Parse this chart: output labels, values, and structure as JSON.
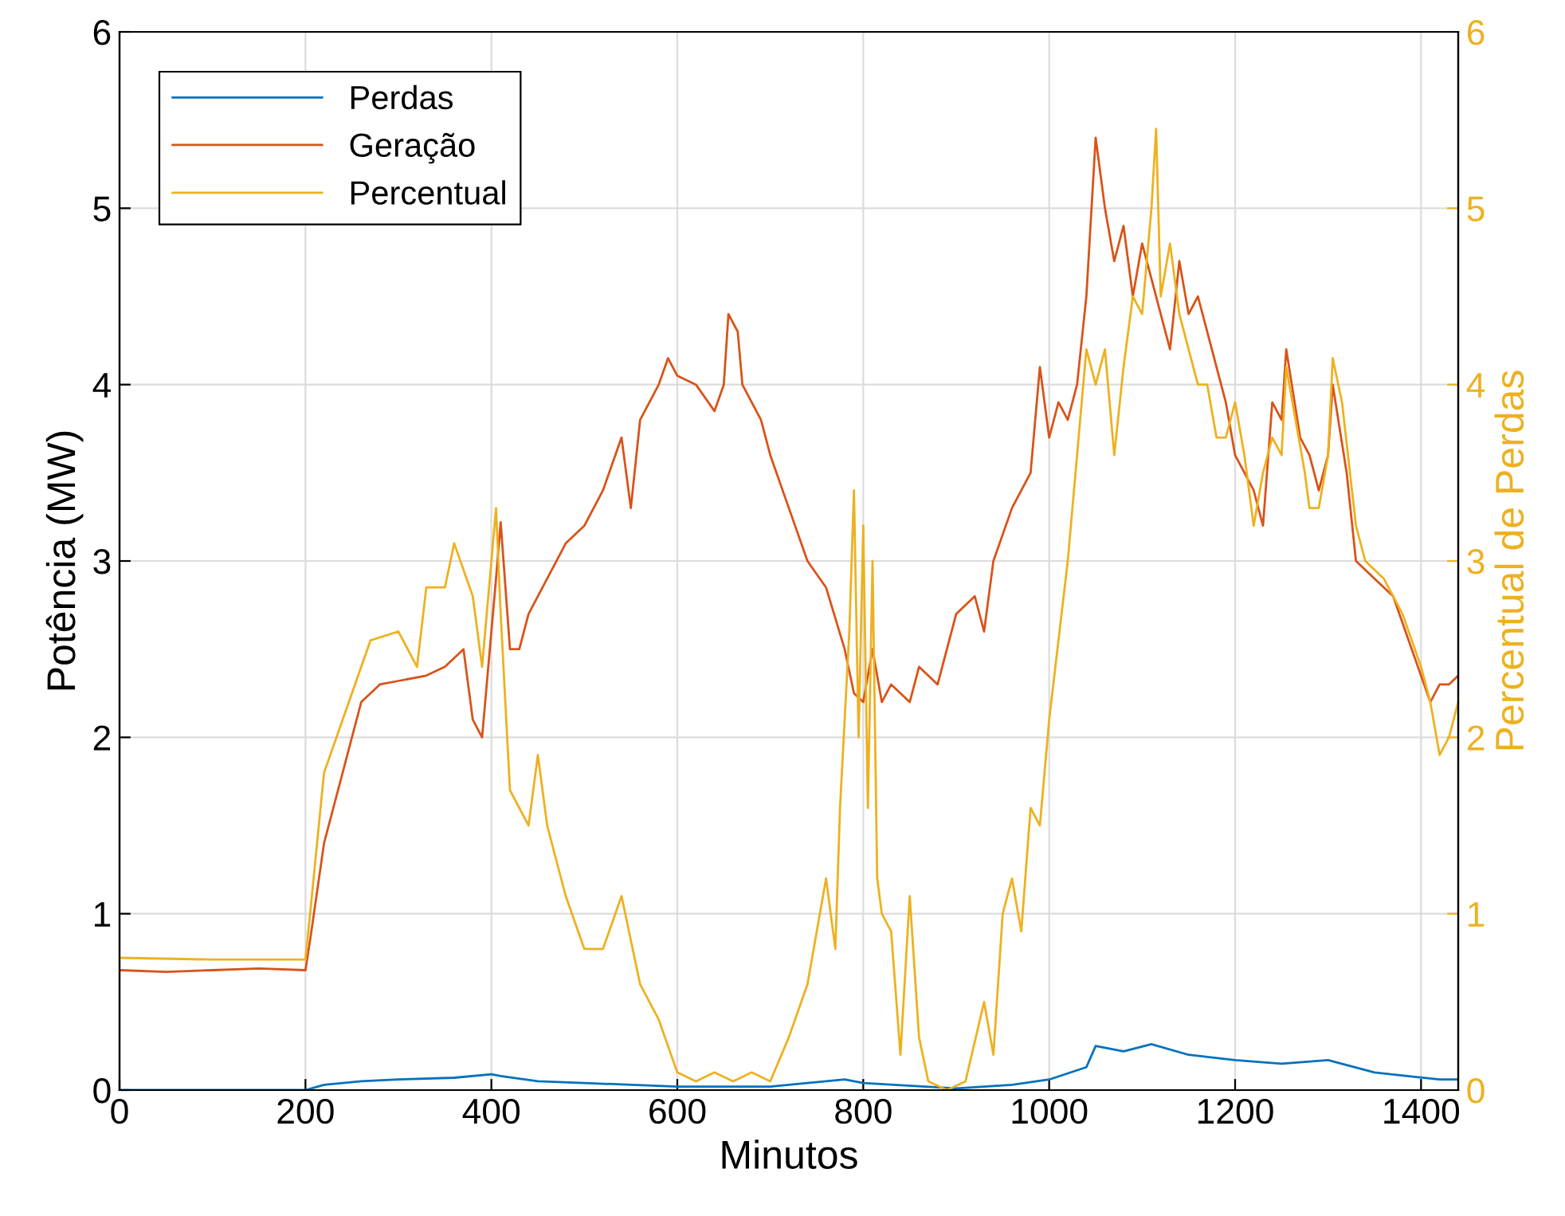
{
  "chart_data": {
    "type": "line",
    "xlabel": "Minutos",
    "ylabel": "Potência (MW)",
    "y2label": "Percentual de Perdas",
    "xlim": [
      0,
      1440
    ],
    "xticks": [
      0,
      200,
      400,
      600,
      800,
      1000,
      1200,
      1400
    ],
    "ylim": [
      0,
      6
    ],
    "yticks": [
      0,
      1,
      2,
      3,
      4,
      5,
      6
    ],
    "y2lim": [
      0,
      6
    ],
    "y2ticks": [
      0,
      1,
      2,
      3,
      4,
      5,
      6
    ],
    "grid": true,
    "legend": "top left",
    "series": [
      {
        "name": "Perdas",
        "color": "#0072bd",
        "x": [
          0,
          200,
          220,
          260,
          300,
          360,
          400,
          410,
          450,
          500,
          600,
          700,
          780,
          800,
          900,
          960,
          1000,
          1040,
          1050,
          1080,
          1110,
          1150,
          1200,
          1250,
          1300,
          1350,
          1420,
          1440
        ],
        "values": [
          0,
          0,
          0.03,
          0.05,
          0.06,
          0.07,
          0.09,
          0.08,
          0.05,
          0.04,
          0.02,
          0.02,
          0.06,
          0.04,
          0.01,
          0.03,
          0.06,
          0.13,
          0.25,
          0.22,
          0.26,
          0.2,
          0.17,
          0.15,
          0.17,
          0.1,
          0.06,
          0.06
        ]
      },
      {
        "name": "Geração",
        "color": "#d95319",
        "x": [
          0,
          50,
          100,
          150,
          200,
          205,
          220,
          240,
          260,
          280,
          300,
          330,
          350,
          370,
          380,
          390,
          400,
          405,
          410,
          420,
          430,
          440,
          460,
          480,
          500,
          520,
          540,
          550,
          560,
          570,
          580,
          590,
          600,
          620,
          640,
          650,
          655,
          665,
          670,
          690,
          700,
          720,
          740,
          760,
          780,
          790,
          800,
          810,
          820,
          830,
          850,
          860,
          880,
          900,
          920,
          930,
          940,
          960,
          980,
          990,
          1000,
          1010,
          1020,
          1030,
          1040,
          1050,
          1060,
          1070,
          1080,
          1090,
          1100,
          1110,
          1130,
          1140,
          1150,
          1160,
          1180,
          1190,
          1200,
          1220,
          1230,
          1240,
          1250,
          1255,
          1270,
          1280,
          1290,
          1300,
          1305,
          1320,
          1330,
          1350,
          1370,
          1390,
          1410,
          1420,
          1430,
          1440
        ],
        "values": [
          0.68,
          0.67,
          0.68,
          0.69,
          0.68,
          0.85,
          1.4,
          1.8,
          2.2,
          2.3,
          2.32,
          2.35,
          2.4,
          2.5,
          2.1,
          2.0,
          2.6,
          2.9,
          3.22,
          2.5,
          2.5,
          2.7,
          2.9,
          3.1,
          3.2,
          3.4,
          3.7,
          3.3,
          3.8,
          3.9,
          4.0,
          4.15,
          4.05,
          4.0,
          3.85,
          4.0,
          4.4,
          4.3,
          4.0,
          3.8,
          3.6,
          3.3,
          3.0,
          2.85,
          2.5,
          2.25,
          2.2,
          2.5,
          2.2,
          2.3,
          2.2,
          2.4,
          2.3,
          2.7,
          2.8,
          2.6,
          3.0,
          3.3,
          3.5,
          4.1,
          3.7,
          3.9,
          3.8,
          4.0,
          4.5,
          5.4,
          5.0,
          4.7,
          4.9,
          4.5,
          4.8,
          4.6,
          4.2,
          4.7,
          4.4,
          4.5,
          4.1,
          3.9,
          3.6,
          3.4,
          3.2,
          3.9,
          3.8,
          4.2,
          3.7,
          3.6,
          3.4,
          3.6,
          4.0,
          3.5,
          3.0,
          2.9,
          2.8,
          2.5,
          2.2,
          2.3,
          2.3,
          2.35
        ]
      },
      {
        "name": "Percentual",
        "color": "#edb120",
        "axis": "y2",
        "x": [
          0,
          100,
          200,
          205,
          220,
          240,
          260,
          270,
          300,
          320,
          330,
          350,
          360,
          380,
          390,
          400,
          405,
          410,
          420,
          440,
          450,
          460,
          480,
          500,
          520,
          540,
          560,
          580,
          600,
          620,
          640,
          660,
          680,
          700,
          720,
          740,
          750,
          760,
          770,
          775,
          785,
          790,
          795,
          800,
          805,
          810,
          815,
          820,
          830,
          840,
          850,
          860,
          870,
          890,
          910,
          930,
          940,
          950,
          960,
          970,
          980,
          990,
          1000,
          1020,
          1040,
          1050,
          1060,
          1070,
          1080,
          1090,
          1100,
          1110,
          1115,
          1120,
          1130,
          1140,
          1160,
          1170,
          1180,
          1190,
          1200,
          1210,
          1220,
          1230,
          1240,
          1250,
          1255,
          1265,
          1275,
          1280,
          1290,
          1300,
          1305,
          1315,
          1330,
          1340,
          1360,
          1380,
          1400,
          1410,
          1420,
          1430,
          1440
        ],
        "values": [
          0.75,
          0.74,
          0.74,
          1.0,
          1.8,
          2.1,
          2.4,
          2.55,
          2.6,
          2.4,
          2.85,
          2.85,
          3.1,
          2.8,
          2.4,
          3.0,
          3.3,
          2.7,
          1.7,
          1.5,
          1.9,
          1.5,
          1.1,
          0.8,
          0.8,
          1.1,
          0.6,
          0.4,
          0.1,
          0.05,
          0.1,
          0.05,
          0.1,
          0.05,
          0.3,
          0.6,
          0.9,
          1.2,
          0.8,
          1.6,
          2.6,
          3.4,
          2.0,
          3.2,
          1.6,
          3.0,
          1.2,
          1.0,
          0.9,
          0.2,
          1.1,
          0.3,
          0.05,
          0.0,
          0.05,
          0.5,
          0.2,
          1.0,
          1.2,
          0.9,
          1.6,
          1.5,
          2.1,
          3.0,
          4.2,
          4.0,
          4.2,
          3.6,
          4.1,
          4.5,
          4.4,
          5.0,
          5.45,
          4.5,
          4.8,
          4.4,
          4.0,
          4.0,
          3.7,
          3.7,
          3.9,
          3.6,
          3.2,
          3.5,
          3.7,
          3.6,
          4.1,
          3.8,
          3.5,
          3.3,
          3.3,
          3.6,
          4.15,
          3.9,
          3.2,
          3.0,
          2.9,
          2.7,
          2.4,
          2.2,
          1.9,
          2.0,
          2.2
        ]
      }
    ]
  }
}
